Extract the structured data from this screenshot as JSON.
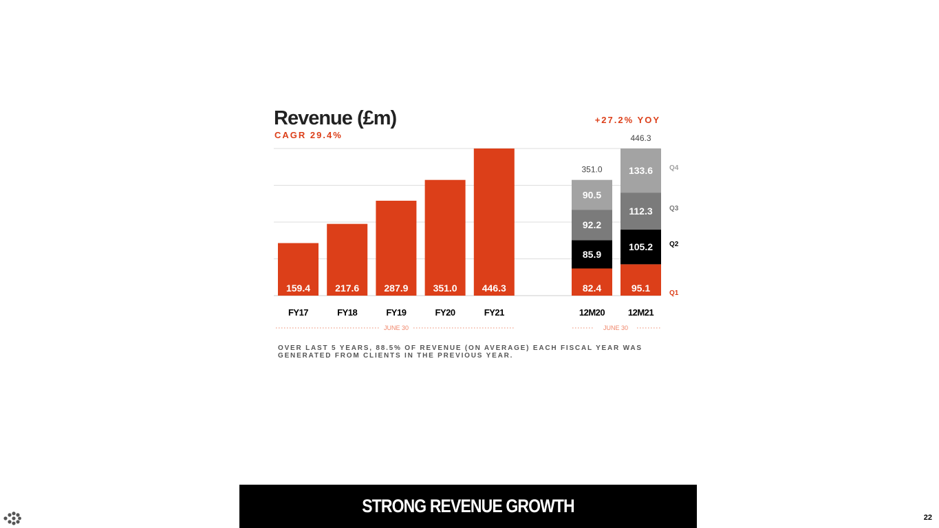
{
  "title": "Revenue (£m)",
  "subtitle": "CAGR 29.4%",
  "yoy": "+27.2% YOY",
  "note": "OVER LAST 5 YEARS, 88.5% OF REVENUE (ON AVERAGE) EACH FISCAL YEAR WAS GENERATED FROM CLIENTS IN THE PREVIOUS YEAR.",
  "footer": "STRONG REVENUE GROWTH",
  "page_number": "22",
  "colors": {
    "accent": "#dc3f19",
    "q2": "#000000",
    "q3": "#7b7b7b",
    "q4": "#a3a3a3",
    "gridline": "#dddddd"
  },
  "chart_data": [
    {
      "type": "bar",
      "title": "Revenue (£m)",
      "subtitle": "CAGR 29.4%",
      "categories": [
        "FY17",
        "FY18",
        "FY19",
        "FY20",
        "FY21"
      ],
      "values": [
        159.4,
        217.6,
        287.9,
        351.0,
        446.3
      ],
      "value_labels": [
        "159.4",
        "217.6",
        "287.9",
        "351.0",
        "446.3"
      ],
      "period_label": "JUNE 30",
      "ylim": [
        0,
        446.3
      ],
      "grid": true
    },
    {
      "type": "bar",
      "stacked": true,
      "annotation": "+27.2% YOY",
      "categories": [
        "12M20",
        "12M21"
      ],
      "totals": [
        "351.0",
        "446.3"
      ],
      "series": [
        {
          "name": "Q1",
          "values": [
            82.4,
            95.1
          ],
          "labels": [
            "82.4",
            "95.1"
          ]
        },
        {
          "name": "Q2",
          "values": [
            85.9,
            105.2
          ],
          "labels": [
            "85.9",
            "105.2"
          ]
        },
        {
          "name": "Q3",
          "values": [
            92.2,
            112.3
          ],
          "labels": [
            "92.2",
            "112.3"
          ]
        },
        {
          "name": "Q4",
          "values": [
            90.5,
            133.6
          ],
          "labels": [
            "90.5",
            "133.6"
          ]
        }
      ],
      "period_label": "JUNE 30",
      "ylim": [
        0,
        446.3
      ]
    }
  ]
}
